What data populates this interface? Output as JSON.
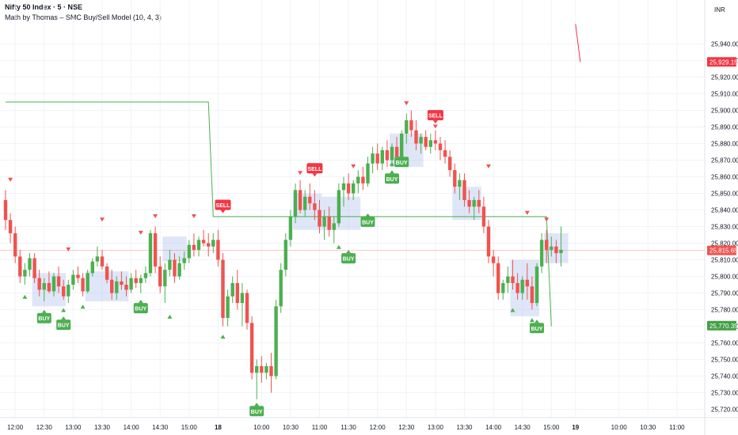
{
  "header": {
    "title": "Nifty 50 Index · 5 · NSE",
    "subtitle": "Math by Thomas – SMC Buy/Sell Model (10, 4, 3)"
  },
  "colors": {
    "up": "#4caf50",
    "down": "#ef5350",
    "zone": "#b9c7ee",
    "line": "#4caf50",
    "last_price": "#ef5350",
    "stop": "#43a047",
    "resistance": "#f23645"
  },
  "chart_data": {
    "type": "candlestick",
    "currency": "INR",
    "y_ticks": [
      25720,
      25730,
      25740,
      25750,
      25760,
      25770,
      25780,
      25790,
      25800,
      25810,
      25820,
      25830,
      25840,
      25850,
      25860,
      25870,
      25880,
      25890,
      25900,
      25910,
      25920,
      25930,
      25940
    ],
    "ylim": [
      25715,
      25950
    ],
    "x_ticks": [
      {
        "label": "12:00",
        "i": 2
      },
      {
        "label": "12:30",
        "i": 8
      },
      {
        "label": "13:00",
        "i": 14
      },
      {
        "label": "13:30",
        "i": 20
      },
      {
        "label": "14:00",
        "i": 26
      },
      {
        "label": "14:30",
        "i": 32
      },
      {
        "label": "15:00",
        "i": 38
      },
      {
        "label": "18",
        "i": 44,
        "day": true
      },
      {
        "label": "10:00",
        "i": 53
      },
      {
        "label": "10:30",
        "i": 59
      },
      {
        "label": "11:00",
        "i": 65
      },
      {
        "label": "11:30",
        "i": 71
      },
      {
        "label": "12:00",
        "i": 77
      },
      {
        "label": "12:30",
        "i": 83
      },
      {
        "label": "13:00",
        "i": 89
      },
      {
        "label": "13:30",
        "i": 95
      },
      {
        "label": "14:00",
        "i": 101
      },
      {
        "label": "14:30",
        "i": 107
      },
      {
        "label": "15:00",
        "i": 113
      },
      {
        "label": "19",
        "i": 118,
        "day": true
      },
      {
        "label": "10:00",
        "i": 127
      },
      {
        "label": "10:30",
        "i": 133
      },
      {
        "label": "11:00",
        "i": 139
      }
    ],
    "candles": [
      [
        25846,
        25852,
        25828,
        25834
      ],
      [
        25834,
        25838,
        25820,
        25826
      ],
      [
        25826,
        25830,
        25808,
        25812
      ],
      [
        25812,
        25816,
        25796,
        25800
      ],
      [
        25800,
        25808,
        25795,
        25804
      ],
      [
        25804,
        25814,
        25800,
        25811
      ],
      [
        25811,
        25814,
        25796,
        25799
      ],
      [
        25799,
        25804,
        25788,
        25792
      ],
      [
        25792,
        25799,
        25785,
        25796
      ],
      [
        25796,
        25803,
        25790,
        25791
      ],
      [
        25791,
        25802,
        25788,
        25800
      ],
      [
        25800,
        25806,
        25790,
        25794
      ],
      [
        25794,
        25798,
        25786,
        25788
      ],
      [
        25788,
        25798,
        25784,
        25795
      ],
      [
        25795,
        25804,
        25792,
        25801
      ],
      [
        25801,
        25806,
        25796,
        25799
      ],
      [
        25799,
        25802,
        25788,
        25791
      ],
      [
        25791,
        25804,
        25790,
        25802
      ],
      [
        25802,
        25811,
        25800,
        25809
      ],
      [
        25809,
        25818,
        25806,
        25812
      ],
      [
        25812,
        25816,
        25804,
        25806
      ],
      [
        25806,
        25808,
        25796,
        25798
      ],
      [
        25798,
        25804,
        25786,
        25790
      ],
      [
        25790,
        25800,
        25786,
        25797
      ],
      [
        25797,
        25803,
        25792,
        25795
      ],
      [
        25795,
        25800,
        25788,
        25792
      ],
      [
        25792,
        25802,
        25790,
        25799
      ],
      [
        25799,
        25804,
        25793,
        25796
      ],
      [
        25796,
        25801,
        25790,
        25799
      ],
      [
        25799,
        25806,
        25796,
        25802
      ],
      [
        25802,
        25828,
        25800,
        25826
      ],
      [
        25826,
        25830,
        25802,
        25806
      ],
      [
        25806,
        25812,
        25790,
        25794
      ],
      [
        25794,
        25808,
        25784,
        25804
      ],
      [
        25804,
        25816,
        25800,
        25810
      ],
      [
        25810,
        25814,
        25796,
        25800
      ],
      [
        25800,
        25812,
        25798,
        25808
      ],
      [
        25808,
        25815,
        25804,
        25811
      ],
      [
        25811,
        25822,
        25808,
        25819
      ],
      [
        25819,
        25826,
        25812,
        25816
      ],
      [
        25816,
        25824,
        25812,
        25822
      ],
      [
        25822,
        25828,
        25818,
        25820
      ],
      [
        25820,
        25826,
        25812,
        25818
      ],
      [
        25818,
        25826,
        25814,
        25822
      ],
      [
        25822,
        25828,
        25806,
        25810
      ],
      [
        25810,
        25814,
        25770,
        25775
      ],
      [
        25775,
        25792,
        25770,
        25788
      ],
      [
        25788,
        25800,
        25784,
        25796
      ],
      [
        25796,
        25804,
        25780,
        25784
      ],
      [
        25784,
        25796,
        25770,
        25790
      ],
      [
        25790,
        25792,
        25768,
        25772
      ],
      [
        25772,
        25776,
        25738,
        25742
      ],
      [
        25742,
        25750,
        25726,
        25746
      ],
      [
        25746,
        25752,
        25736,
        25742
      ],
      [
        25742,
        25748,
        25738,
        25746
      ],
      [
        25746,
        25754,
        25730,
        25740
      ],
      [
        25740,
        25786,
        25738,
        25782
      ],
      [
        25782,
        25808,
        25778,
        25804
      ],
      [
        25804,
        25826,
        25800,
        25822
      ],
      [
        25822,
        25840,
        25818,
        25836
      ],
      [
        25836,
        25856,
        25832,
        25852
      ],
      [
        25852,
        25858,
        25838,
        25840
      ],
      [
        25840,
        25852,
        25836,
        25848
      ],
      [
        25848,
        25856,
        25840,
        25844
      ],
      [
        25844,
        25852,
        25834,
        25840
      ],
      [
        25840,
        25846,
        25826,
        25830
      ],
      [
        25830,
        25840,
        25822,
        25836
      ],
      [
        25836,
        25842,
        25824,
        25828
      ],
      [
        25828,
        25836,
        25820,
        25832
      ],
      [
        25832,
        25856,
        25830,
        25852
      ],
      [
        25852,
        25860,
        25842,
        25856
      ],
      [
        25856,
        25862,
        25846,
        25850
      ],
      [
        25850,
        25858,
        25846,
        25856
      ],
      [
        25856,
        25864,
        25850,
        25860
      ],
      [
        25860,
        25866,
        25852,
        25856
      ],
      [
        25856,
        25872,
        25854,
        25868
      ],
      [
        25868,
        25878,
        25862,
        25874
      ],
      [
        25874,
        25880,
        25864,
        25868
      ],
      [
        25868,
        25878,
        25864,
        25876
      ],
      [
        25876,
        25882,
        25866,
        25870
      ],
      [
        25870,
        25880,
        25866,
        25878
      ],
      [
        25878,
        25884,
        25868,
        25872
      ],
      [
        25872,
        25888,
        25870,
        25886
      ],
      [
        25886,
        25898,
        25880,
        25894
      ],
      [
        25894,
        25900,
        25884,
        25888
      ],
      [
        25888,
        25894,
        25876,
        25880
      ],
      [
        25880,
        25886,
        25874,
        25884
      ],
      [
        25884,
        25888,
        25876,
        25878
      ],
      [
        25878,
        25886,
        25874,
        25882
      ],
      [
        25882,
        25888,
        25876,
        25880
      ],
      [
        25880,
        25884,
        25870,
        25876
      ],
      [
        25876,
        25882,
        25868,
        25872
      ],
      [
        25872,
        25876,
        25860,
        25864
      ],
      [
        25864,
        25868,
        25850,
        25854
      ],
      [
        25854,
        25862,
        25846,
        25858
      ],
      [
        25858,
        25862,
        25842,
        25846
      ],
      [
        25846,
        25852,
        25838,
        25842
      ],
      [
        25842,
        25848,
        25834,
        25846
      ],
      [
        25846,
        25852,
        25838,
        25842
      ],
      [
        25842,
        25848,
        25826,
        25830
      ],
      [
        25830,
        25834,
        25808,
        25812
      ],
      [
        25812,
        25816,
        25800,
        25808
      ],
      [
        25808,
        25812,
        25786,
        25790
      ],
      [
        25790,
        25798,
        25786,
        25796
      ],
      [
        25796,
        25806,
        25790,
        25800
      ],
      [
        25800,
        25810,
        25792,
        25796
      ],
      [
        25796,
        25802,
        25786,
        25790
      ],
      [
        25790,
        25800,
        25786,
        25798
      ],
      [
        25798,
        25808,
        25786,
        25794
      ],
      [
        25794,
        25800,
        25780,
        25784
      ],
      [
        25784,
        25808,
        25782,
        25806
      ],
      [
        25806,
        25826,
        25802,
        25822
      ],
      [
        25822,
        25828,
        25808,
        25816
      ],
      [
        25816,
        25824,
        25812,
        25818
      ],
      [
        25818,
        25822,
        25808,
        25814
      ],
      [
        25814,
        25830,
        25806,
        25816
      ]
    ],
    "zones": [
      {
        "i0": 6,
        "i1": 12,
        "top": 25802,
        "bottom": 25782
      },
      {
        "i0": 17,
        "i1": 25,
        "top": 25803,
        "bottom": 25785
      },
      {
        "i0": 33,
        "i1": 37,
        "top": 25824,
        "bottom": 25809
      },
      {
        "i0": 60,
        "i1": 65,
        "top": 25850,
        "bottom": 25828
      },
      {
        "i0": 66,
        "i1": 73,
        "top": 25848,
        "bottom": 25828
      },
      {
        "i0": 80,
        "i1": 86,
        "top": 25886,
        "bottom": 25866
      },
      {
        "i0": 93,
        "i1": 98,
        "top": 25854,
        "bottom": 25834
      },
      {
        "i0": 105,
        "i1": 110,
        "top": 25810,
        "bottom": 25776
      },
      {
        "i0": 112,
        "i1": 116,
        "top": 25826,
        "bottom": 25808
      }
    ],
    "trail_line": [
      [
        0,
        25905
      ],
      [
        42,
        25905
      ],
      [
        43,
        25836
      ],
      [
        112,
        25836
      ],
      [
        113,
        25770
      ]
    ],
    "signals": [
      {
        "type": "BUY",
        "i": 8,
        "price": 25778
      },
      {
        "type": "BUY",
        "i": 12,
        "price": 25774
      },
      {
        "type": "BUY",
        "i": 28,
        "price": 25784
      },
      {
        "type": "BUY",
        "i": 52,
        "price": 25722
      },
      {
        "type": "BUY",
        "i": 71,
        "price": 25814
      },
      {
        "type": "BUY",
        "i": 75,
        "price": 25836
      },
      {
        "type": "BUY",
        "i": 80,
        "price": 25862
      },
      {
        "type": "BUY",
        "i": 82,
        "price": 25872
      },
      {
        "type": "BUY",
        "i": 110,
        "price": 25772
      },
      {
        "type": "SELL",
        "i": 45,
        "price": 25840
      },
      {
        "type": "SELL",
        "i": 64,
        "price": 25862
      },
      {
        "type": "SELL",
        "i": 89,
        "price": 25894
      }
    ],
    "up_markers": [
      {
        "i": 4,
        "price": 25788
      },
      {
        "i": 12,
        "price": 25780
      },
      {
        "i": 16,
        "price": 25782
      },
      {
        "i": 34,
        "price": 25776
      },
      {
        "i": 45,
        "price": 25764
      },
      {
        "i": 52,
        "price": 25722
      },
      {
        "i": 69,
        "price": 25818
      },
      {
        "i": 80,
        "price": 25868
      },
      {
        "i": 105,
        "price": 25780
      },
      {
        "i": 109,
        "price": 25774
      }
    ],
    "down_markers": [
      {
        "i": 1,
        "price": 25858
      },
      {
        "i": 13,
        "price": 25816
      },
      {
        "i": 20,
        "price": 25834
      },
      {
        "i": 28,
        "price": 25826
      },
      {
        "i": 31,
        "price": 25836
      },
      {
        "i": 39,
        "price": 25836
      },
      {
        "i": 61,
        "price": 25862
      },
      {
        "i": 72,
        "price": 25866
      },
      {
        "i": 83,
        "price": 25904
      },
      {
        "i": 89,
        "price": 25890
      },
      {
        "i": 100,
        "price": 25866
      },
      {
        "i": 108,
        "price": 25838
      },
      {
        "i": 112,
        "price": 25834
      }
    ],
    "top_line": [
      [
        118,
        25952
      ],
      [
        119,
        25929
      ]
    ],
    "price_labels": [
      {
        "value": 25929.15,
        "text": "25,929.15",
        "color": "#f23645"
      },
      {
        "value": 25815.65,
        "text": "25,815.65",
        "color": "#ef5350"
      },
      {
        "value": 25770.35,
        "text": "25,770.35",
        "color": "#43a047"
      }
    ],
    "last_price": 25815.65
  }
}
